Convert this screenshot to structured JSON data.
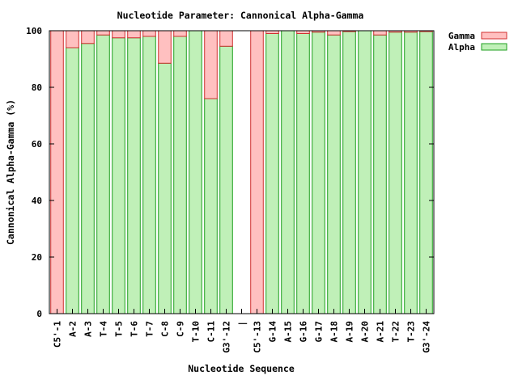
{
  "chart_data": {
    "type": "bar",
    "stacked": true,
    "title": "Nucleotide Parameter: Cannonical Alpha-Gamma",
    "xlabel": "Nucleotide Sequence",
    "ylabel": "Cannonical Alpha-Gamma (%)",
    "ylim": [
      0,
      100
    ],
    "yticks": [
      0,
      20,
      40,
      60,
      80,
      100
    ],
    "grid": false,
    "legend_position": "top-right",
    "categories": [
      "C5'-1",
      "A-2",
      "A-3",
      "T-4",
      "T-5",
      "T-6",
      "T-7",
      "C-8",
      "C-9",
      "T-10",
      "C-11",
      "G3'-12",
      "|",
      "C5'-13",
      "G-14",
      "A-15",
      "G-16",
      "G-17",
      "A-18",
      "A-19",
      "A-20",
      "A-21",
      "T-22",
      "T-23",
      "G3'-24"
    ],
    "series": [
      {
        "name": "Gamma",
        "color": "#ffc0c0",
        "edge": "#d03030",
        "values": [
          100,
          6,
          4.5,
          1.5,
          2.5,
          2.5,
          2,
          11.5,
          2,
          0,
          24,
          5.5,
          null,
          100,
          1,
          0,
          1,
          0.5,
          1.5,
          0.3,
          0,
          1.5,
          0.5,
          0.5,
          0.3
        ]
      },
      {
        "name": "Alpha",
        "color": "#c0f0b8",
        "edge": "#20a020",
        "values": [
          0,
          94,
          95.5,
          98.5,
          97.5,
          97.5,
          98,
          88.5,
          98,
          100,
          76,
          94.5,
          null,
          0,
          99,
          100,
          99,
          99.5,
          98.5,
          99.7,
          100,
          98.5,
          99.5,
          99.5,
          99.7
        ]
      }
    ]
  }
}
